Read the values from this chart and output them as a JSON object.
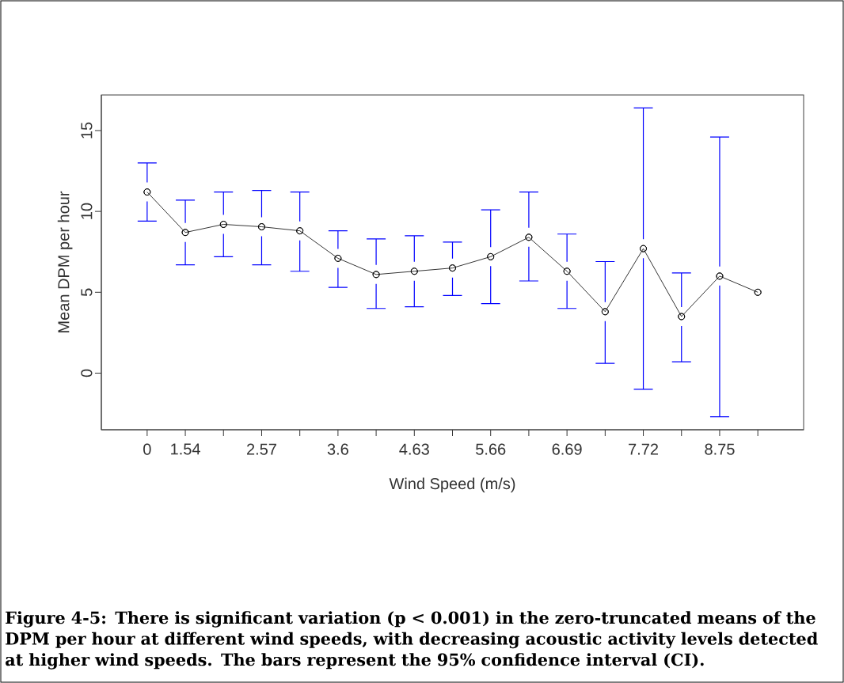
{
  "chart_data": {
    "type": "line",
    "xlabel": "Wind Speed (m/s)",
    "ylabel": "Mean DPM per hour",
    "categories": [
      "0",
      "1.54",
      null,
      "2.57",
      null,
      "3.6",
      null,
      "4.63",
      null,
      "5.66",
      null,
      "6.69",
      null,
      "7.72",
      null,
      "8.75",
      null
    ],
    "series": [
      {
        "color": "#000000",
        "values": [
          11.2,
          8.7,
          9.2,
          9.05,
          8.8,
          7.1,
          6.1,
          6.3,
          6.5,
          7.2,
          8.4,
          6.3,
          3.8,
          7.7,
          3.5,
          6.0,
          5.0
        ],
        "errors": [
          [
            9.4,
            13.0
          ],
          [
            6.7,
            10.7
          ],
          [
            7.2,
            11.2
          ],
          [
            6.7,
            11.3
          ],
          [
            6.3,
            11.2
          ],
          [
            5.3,
            8.8
          ],
          [
            4.0,
            8.3
          ],
          [
            4.1,
            8.5
          ],
          [
            4.8,
            8.1
          ],
          [
            4.3,
            10.1
          ],
          [
            5.7,
            11.2
          ],
          [
            4.0,
            8.6
          ],
          [
            0.6,
            6.9
          ],
          [
            -1.0,
            16.4
          ],
          [
            0.7,
            6.2
          ],
          [
            -2.7,
            14.6
          ],
          null
        ]
      }
    ],
    "ylim": [
      -3.5,
      17.2
    ],
    "yticks": [
      0,
      5,
      10,
      15
    ],
    "marker": "circle",
    "line_style": "solid",
    "grid": false,
    "annotations": [
      "Figure 4-5: There is significant variation (p < 0.001) in the zero-truncated means of the DPM per hour at different wind speeds, with decreasing acoustic activity levels detected at higher wind speeds. The bars represent the 95% confidence interval (CI)."
    ]
  }
}
